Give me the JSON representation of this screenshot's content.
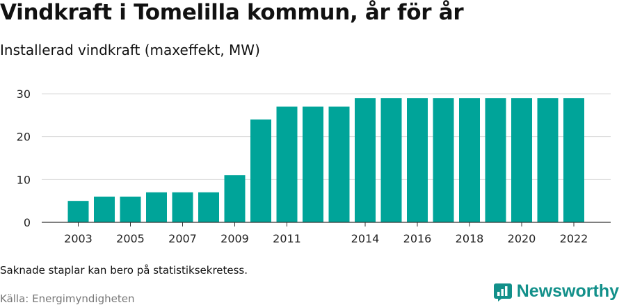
{
  "header": {
    "title": "Vindkraft i Tomelilla kommun, år för år",
    "subtitle": "Installerad vindkraft (maxeffekt, MW)"
  },
  "footer": {
    "note": "Saknade staplar kan bero på statistiksekretess.",
    "source": "Källa: Energimyndigheten",
    "brand": "Newsworthy"
  },
  "colors": {
    "bar": "#00a499",
    "brand": "#12908a",
    "grid": "#d9d9d9"
  },
  "chart_data": {
    "type": "bar",
    "title": "Vindkraft i Tomelilla kommun, år för år",
    "subtitle": "Installerad vindkraft (maxeffekt, MW)",
    "categories": [
      "2003",
      "2004",
      "2005",
      "2006",
      "2007",
      "2008",
      "2009",
      "2010",
      "2011",
      "2012",
      "2013",
      "2014",
      "2015",
      "2016",
      "2017",
      "2018",
      "2019",
      "2020",
      "2021",
      "2022"
    ],
    "values": [
      5,
      6,
      6,
      7,
      7,
      7,
      11,
      24,
      27,
      27,
      27,
      29,
      29,
      29,
      29,
      29,
      29,
      29,
      29,
      29
    ],
    "x_tick_labels": [
      "2003",
      "2005",
      "2007",
      "2009",
      "2011",
      "2014",
      "2016",
      "2018",
      "2020",
      "2022"
    ],
    "y_ticks": [
      0,
      10,
      20,
      30
    ],
    "ylim": [
      0,
      33
    ],
    "grid": true,
    "xlabel": "",
    "ylabel": ""
  }
}
